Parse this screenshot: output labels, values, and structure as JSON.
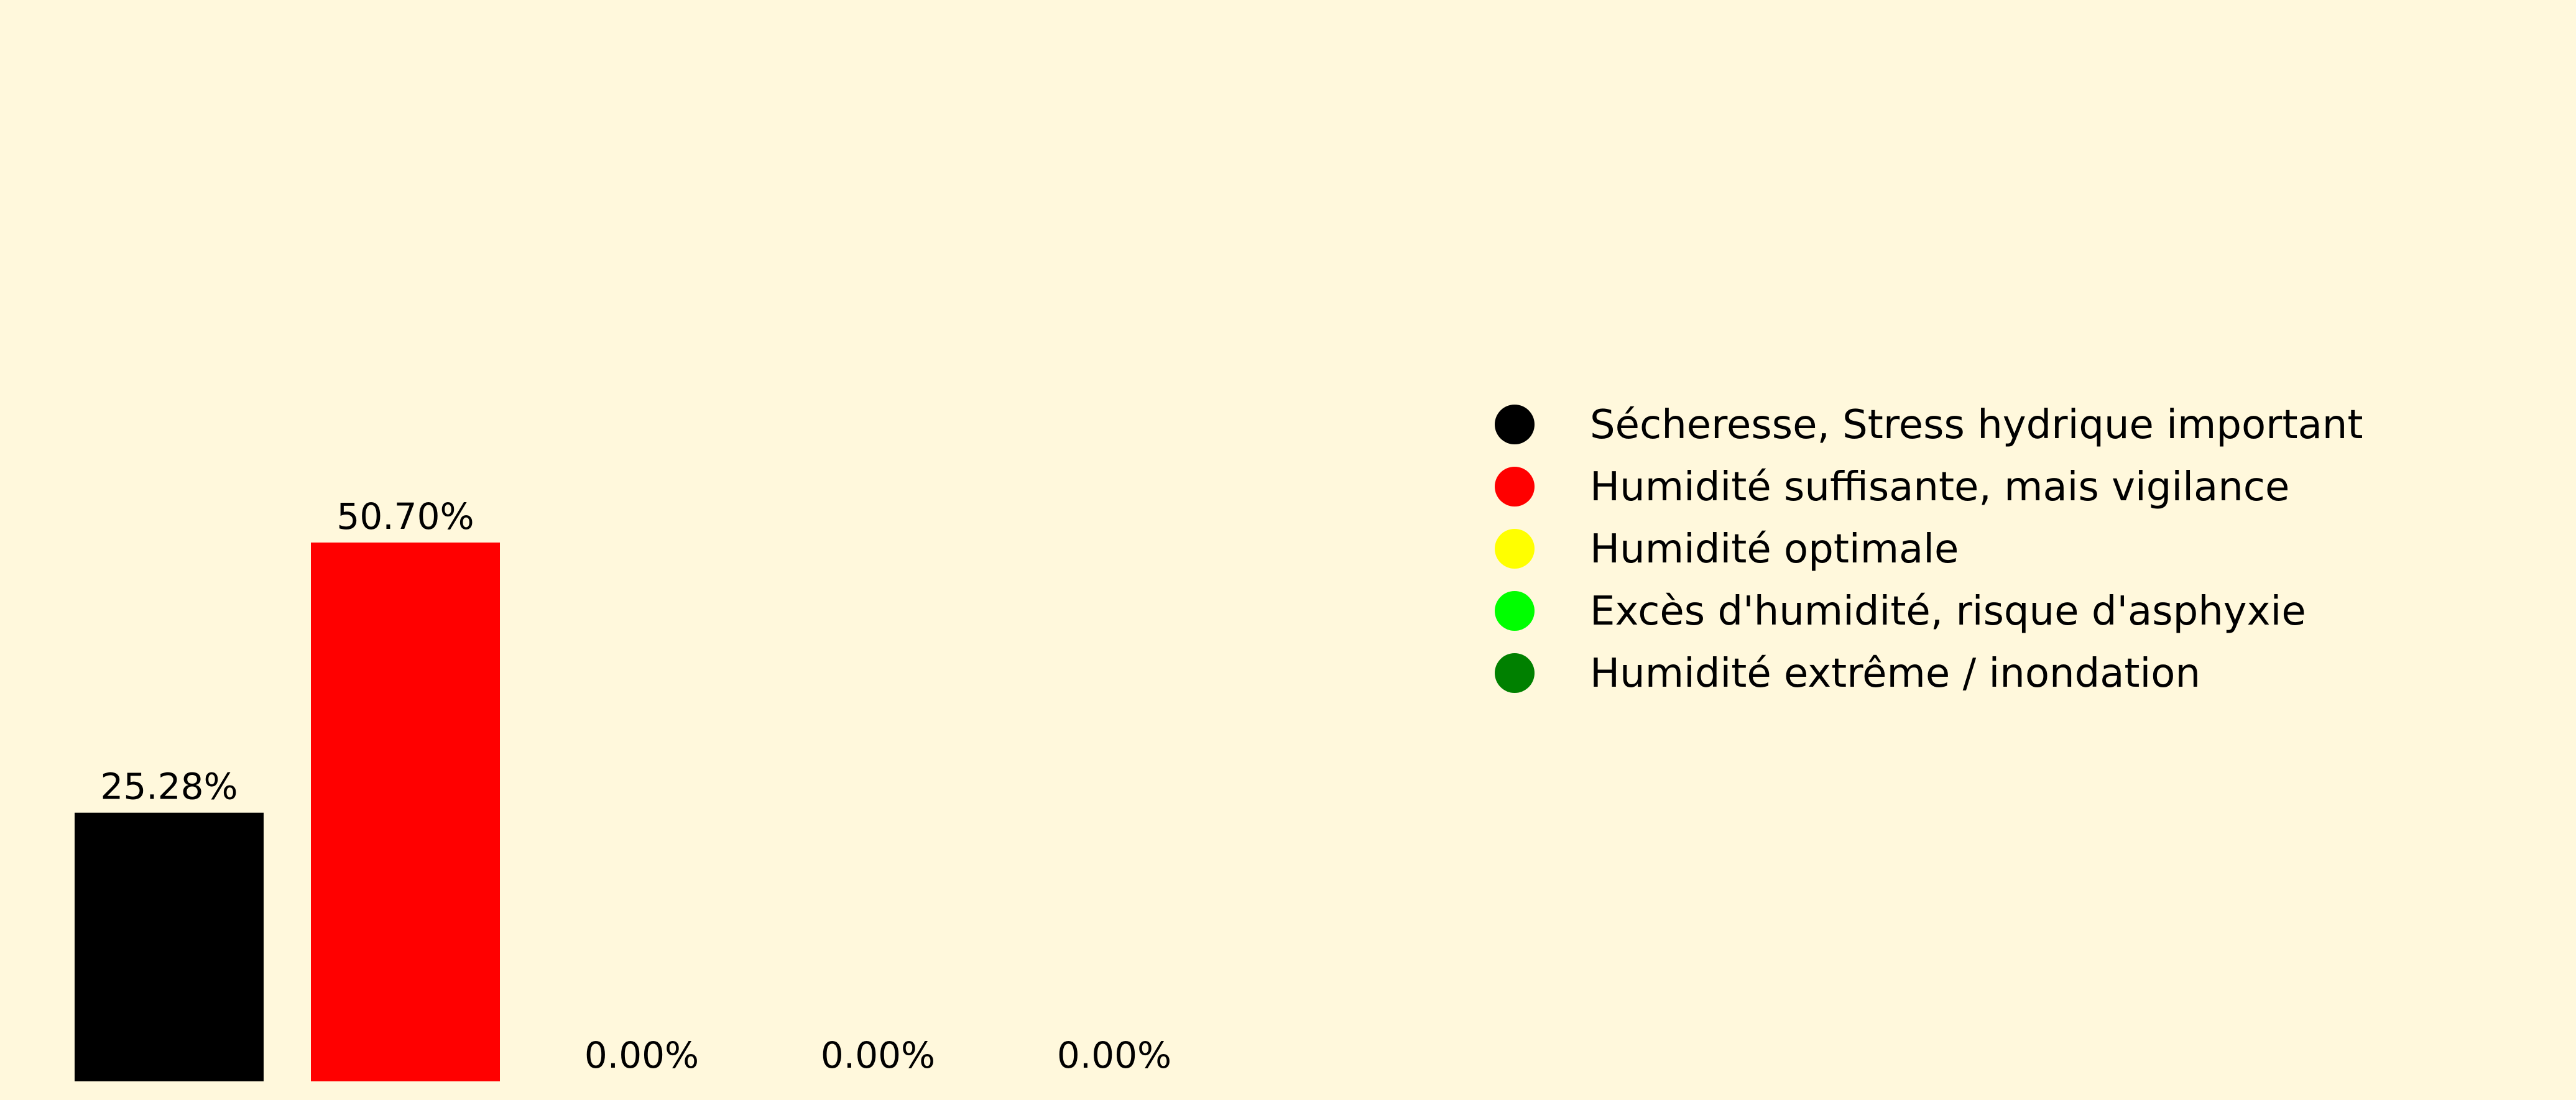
{
  "chart_data": {
    "type": "bar",
    "categories": [
      "Sécheresse, Stress hydrique important",
      "Humidité suffisante, mais vigilance",
      "Humidité optimale",
      "Excès d'humidité, risque d'asphyxie",
      "Humidité extrême / inondation"
    ],
    "values": [
      25.28,
      50.7,
      0.0,
      0.0,
      0.0
    ],
    "value_labels": [
      "25.28%",
      "50.70%",
      "0.00%",
      "0.00%",
      "0.00%"
    ],
    "colors": [
      "#000000",
      "#ff0000",
      "#ffff00",
      "#00ff00",
      "#008000"
    ],
    "unit": "%",
    "title": "",
    "xlabel": "",
    "ylabel": "",
    "grid": false,
    "legend_position": "right",
    "background": "#fff8dc"
  }
}
